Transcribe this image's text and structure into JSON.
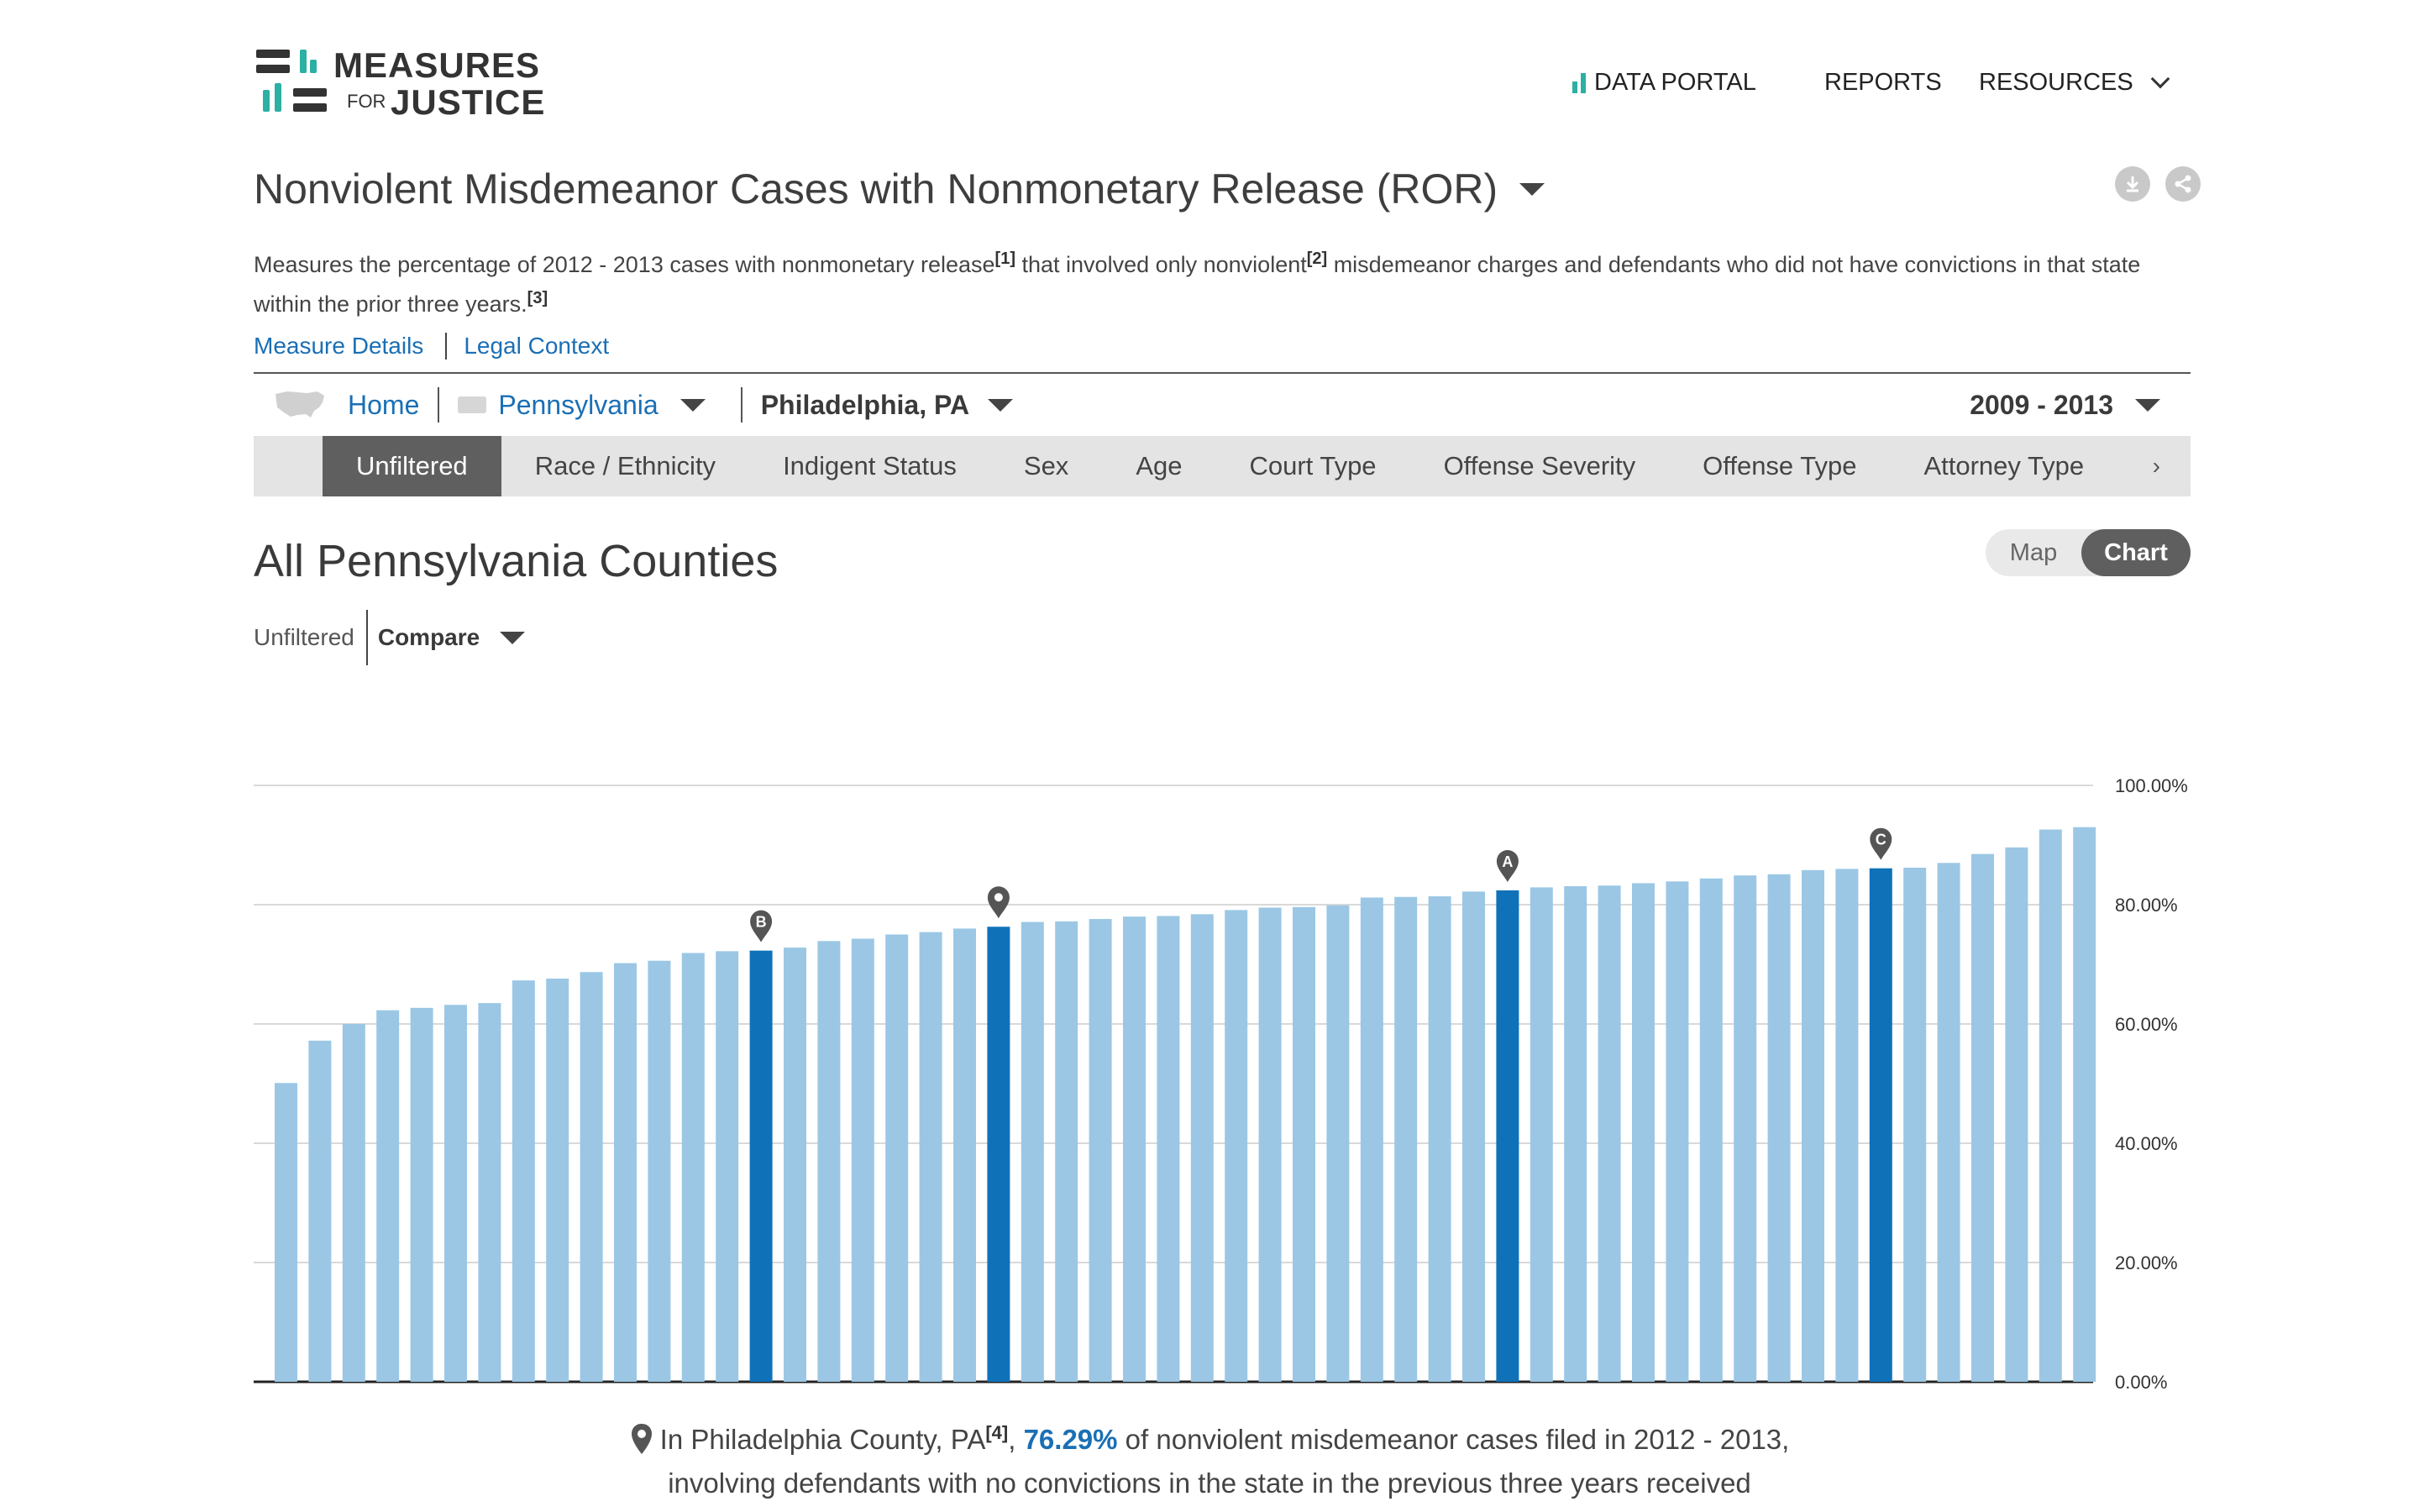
{
  "logo": {
    "line1": "MEASURES",
    "for": "FOR",
    "line2": "JUSTICE"
  },
  "nav": {
    "portal": "DATA PORTAL",
    "reports": "REPORTS",
    "resources": "RESOURCES"
  },
  "title": "Nonviolent Misdemeanor Cases with Nonmonetary Release (ROR)",
  "description": {
    "p1": "Measures the percentage of 2012 - 2013 cases with nonmonetary release",
    "ref1": "[1]",
    "p2": " that involved only nonviolent",
    "ref2": "[2]",
    "p3": " misdemeanor charges and defendants who did not have convictions in that state within the prior three years.",
    "ref3": "[3]"
  },
  "links": {
    "details": "Measure Details",
    "legal": "Legal Context"
  },
  "breadcrumb": {
    "home": "Home",
    "state": "Pennsylvania",
    "county": "Philadelphia, PA",
    "years": "2009 - 2013"
  },
  "tabs": [
    "Unfiltered",
    "Race / Ethnicity",
    "Indigent Status",
    "Sex",
    "Age",
    "Court Type",
    "Offense Severity",
    "Offense Type",
    "Attorney Type"
  ],
  "tabs_more": "›",
  "section_title": "All Pennsylvania Counties",
  "view_toggle": {
    "map": "Map",
    "chart": "Chart"
  },
  "compare": {
    "unfiltered": "Unfiltered",
    "compare": "Compare"
  },
  "colors": {
    "bar": "#9bc7e5",
    "highlight": "#0f72b9",
    "link": "#1a6fb5",
    "pin": "#555555"
  },
  "chart_data": {
    "type": "bar",
    "ylim": [
      0,
      100
    ],
    "y_ticks": [
      "0.00%",
      "20.00%",
      "40.00%",
      "60.00%",
      "80.00%",
      "100.00%"
    ],
    "values": [
      50.1,
      57.2,
      60.0,
      62.3,
      62.7,
      63.2,
      63.5,
      67.3,
      67.6,
      68.7,
      70.2,
      70.6,
      71.9,
      72.2,
      72.3,
      72.8,
      73.9,
      74.3,
      75.0,
      75.4,
      76.0,
      76.3,
      77.1,
      77.2,
      77.6,
      78.0,
      78.1,
      78.4,
      79.1,
      79.5,
      79.6,
      79.9,
      81.2,
      81.3,
      81.4,
      82.2,
      82.4,
      82.9,
      83.1,
      83.2,
      83.6,
      83.9,
      84.4,
      84.9,
      85.1,
      85.8,
      86.0,
      86.1,
      86.2,
      87.0,
      88.5,
      89.6,
      92.6,
      93.0
    ],
    "highlights": [
      {
        "index": 14,
        "marker": "B"
      },
      {
        "index": 21,
        "marker": ""
      },
      {
        "index": 36,
        "marker": "A"
      },
      {
        "index": 47,
        "marker": "C"
      }
    ]
  },
  "summary": {
    "pre": "In Philadelphia County, PA",
    "ref": "[4]",
    "comma": ", ",
    "pct": "76.29%",
    "post": " of nonviolent misdemeanor cases filed in 2012 - 2013,",
    "line2": "involving defendants with no convictions in the state in the previous three years received"
  }
}
